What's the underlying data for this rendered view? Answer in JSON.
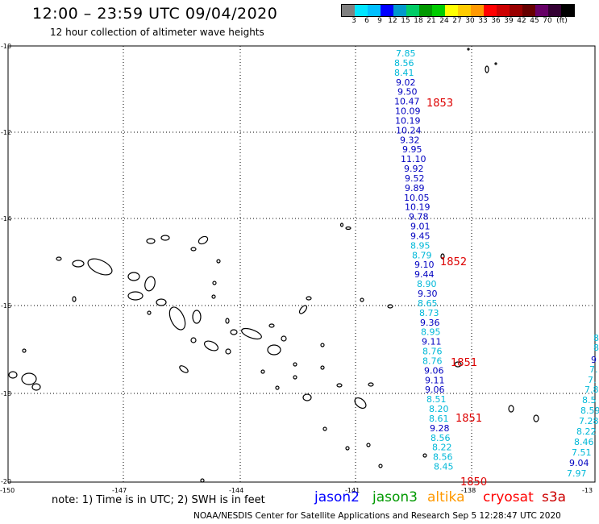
{
  "header": {
    "title": "12:00 – 23:59 UTC 09/04/2020",
    "subtitle": "12 hour collection of altimeter wave heights"
  },
  "legend_scale": {
    "colors": [
      "#808080",
      "#00e5ff",
      "#00bfff",
      "#0000ff",
      "#0099cc",
      "#00cc66",
      "#009900",
      "#00cc00",
      "#ffff00",
      "#ffcc00",
      "#ff9900",
      "#ff0000",
      "#cc0000",
      "#990000",
      "#660000",
      "#660066",
      "#330033",
      "#000000"
    ],
    "labels": [
      "3",
      "6",
      "9",
      "12",
      "15",
      "18",
      "21",
      "24",
      "27",
      "30",
      "33",
      "36",
      "39",
      "42",
      "45",
      "70",
      "(ft)"
    ]
  },
  "axes": {
    "lat_labels": [
      "-10",
      "-12",
      "-14",
      "-16",
      "-18",
      "-20"
    ],
    "lon_labels": [
      "-150",
      "-147",
      "-144",
      "-141",
      "-138",
      "-13"
    ]
  },
  "tracks": [
    {
      "id": "main",
      "points": [
        {
          "v": "7.85",
          "c": "#00b8d8"
        },
        {
          "v": "8.56",
          "c": "#00b8d8"
        },
        {
          "v": "8.41",
          "c": "#00b8d8"
        },
        {
          "v": "9.02",
          "c": "#0000c0"
        },
        {
          "v": "9.50",
          "c": "#0000c0"
        },
        {
          "v": "10.47",
          "c": "#0000c0"
        },
        {
          "v": "10.09",
          "c": "#0000c0"
        },
        {
          "v": "10.19",
          "c": "#0000c0"
        },
        {
          "v": "10.24",
          "c": "#0000c0"
        },
        {
          "v": "9.32",
          "c": "#0000c0"
        },
        {
          "v": "9.95",
          "c": "#0000c0"
        },
        {
          "v": "11.10",
          "c": "#0000c0"
        },
        {
          "v": "9.92",
          "c": "#0000c0"
        },
        {
          "v": "9.52",
          "c": "#0000c0"
        },
        {
          "v": "9.89",
          "c": "#0000c0"
        },
        {
          "v": "10.05",
          "c": "#0000c0"
        },
        {
          "v": "10.19",
          "c": "#0000c0"
        },
        {
          "v": "9.78",
          "c": "#0000c0"
        },
        {
          "v": "9.01",
          "c": "#0000c0"
        },
        {
          "v": "9.45",
          "c": "#0000c0"
        },
        {
          "v": "8.95",
          "c": "#00b8d8"
        },
        {
          "v": "8.79",
          "c": "#00b8d8"
        },
        {
          "v": "9.10",
          "c": "#0000c0"
        },
        {
          "v": "9.44",
          "c": "#0000c0"
        },
        {
          "v": "8.90",
          "c": "#00b8d8"
        },
        {
          "v": "9.30",
          "c": "#0000c0"
        },
        {
          "v": "8.65",
          "c": "#00b8d8"
        },
        {
          "v": "8.73",
          "c": "#00b8d8"
        },
        {
          "v": "9.36",
          "c": "#0000c0"
        },
        {
          "v": "8.95",
          "c": "#00b8d8"
        },
        {
          "v": "9.11",
          "c": "#0000c0"
        },
        {
          "v": "8.76",
          "c": "#00b8d8"
        },
        {
          "v": "8.76",
          "c": "#00b8d8"
        },
        {
          "v": "9.06",
          "c": "#0000c0"
        },
        {
          "v": "9.11",
          "c": "#0000c0"
        },
        {
          "v": "9.06",
          "c": "#0000c0"
        },
        {
          "v": "8.51",
          "c": "#00b8d8"
        },
        {
          "v": "8.20",
          "c": "#00b8d8"
        },
        {
          "v": "8.61",
          "c": "#00b8d8"
        },
        {
          "v": "9.28",
          "c": "#0000c0"
        },
        {
          "v": "8.56",
          "c": "#00b8d8"
        },
        {
          "v": "8.22",
          "c": "#00b8d8"
        },
        {
          "v": "8.56",
          "c": "#00b8d8"
        },
        {
          "v": "8.45",
          "c": "#00b8d8"
        }
      ]
    },
    {
      "id": "right-edge",
      "points": [
        {
          "v": "8",
          "c": "#00b8d8"
        },
        {
          "v": "8",
          "c": "#00b8d8"
        },
        {
          "v": "9",
          "c": "#0000c0"
        },
        {
          "v": "7.",
          "c": "#00b8d8"
        },
        {
          "v": "7.",
          "c": "#00b8d8"
        },
        {
          "v": "7.8",
          "c": "#00b8d8"
        },
        {
          "v": "8.5",
          "c": "#00b8d8"
        },
        {
          "v": "8.59",
          "c": "#00b8d8"
        },
        {
          "v": "7.28",
          "c": "#00b8d8"
        },
        {
          "v": "8.22",
          "c": "#00b8d8"
        },
        {
          "v": "8.46",
          "c": "#00b8d8"
        },
        {
          "v": "7.51",
          "c": "#00b8d8"
        },
        {
          "v": "9.04",
          "c": "#0000c0"
        },
        {
          "v": "7.97",
          "c": "#00b8d8"
        }
      ]
    }
  ],
  "time_labels": [
    "1853",
    "1852",
    "1851",
    "1851",
    "1850"
  ],
  "note": "note:  1) Time is in UTC;  2) SWH is in feet",
  "satellites": [
    {
      "name": "jason2",
      "color": "#0000ff"
    },
    {
      "name": "jason3",
      "color": "#009900"
    },
    {
      "name": "altika",
      "color": "#ff9900"
    },
    {
      "name": "cryosat",
      "color": "#ff0000"
    },
    {
      "name": "s3a",
      "color": "#cc0000"
    }
  ],
  "footer": "NOAA/NESDIS Center for Satellite Applications and Research     Sep  5 12:28:47 UTC 2020"
}
